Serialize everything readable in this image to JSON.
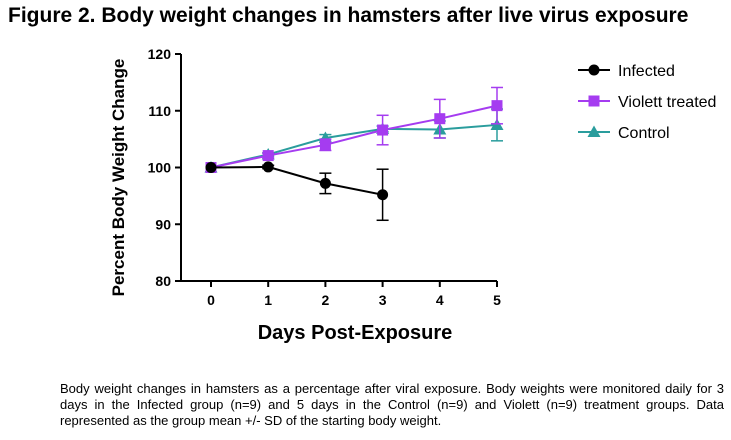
{
  "title": "Figure 2. Body weight changes in hamsters after live virus exposure",
  "caption": "Body weight changes in hamsters as a percentage after viral exposure.  Body weights were monitored daily for 3 days in the Infected group (n=9) and 5 days in the Control (n=9) and Violett (n=9) treatment groups. Data represented as the group mean  +/- SD of the starting body weight.",
  "chart_data": {
    "type": "line",
    "title": "Figure 2. Body weight changes in hamsters after live virus exposure",
    "xlabel": "Days Post-Exposure",
    "ylabel": "Percent Body Weight Change",
    "xlim": [
      0,
      5
    ],
    "ylim": [
      80,
      120
    ],
    "xticks": [
      0,
      1,
      2,
      3,
      4,
      5
    ],
    "yticks": [
      80,
      90,
      100,
      110,
      120
    ],
    "grid": false,
    "legend_position": "top-right",
    "series": [
      {
        "name": "Infected",
        "color": "#000000",
        "marker": "circle",
        "x": [
          0,
          1,
          2,
          3
        ],
        "y": [
          100,
          100.1,
          97.2,
          95.2
        ],
        "error": [
          0,
          0.3,
          1.8,
          4.5
        ]
      },
      {
        "name": "Violett treated",
        "color": "#a53cf0",
        "marker": "square",
        "x": [
          0,
          1,
          2,
          3,
          4,
          5
        ],
        "y": [
          100,
          102.1,
          104.0,
          106.6,
          108.6,
          110.9
        ],
        "error": [
          0,
          0.4,
          1.0,
          2.6,
          3.4,
          3.2
        ]
      },
      {
        "name": "Control",
        "color": "#2a9d9d",
        "marker": "triangle",
        "x": [
          0,
          1,
          2,
          3,
          4,
          5
        ],
        "y": [
          100,
          102.3,
          105.2,
          106.8,
          106.7,
          107.5
        ],
        "error": [
          0,
          0.3,
          0.6,
          0.5,
          1.5,
          2.8
        ]
      }
    ]
  }
}
